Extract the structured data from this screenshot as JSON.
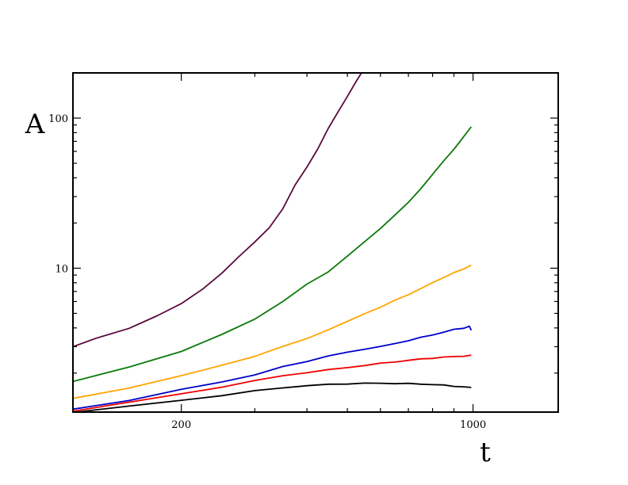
{
  "chart_data": {
    "type": "line",
    "title": "",
    "xlabel": "t",
    "ylabel": "A",
    "xscale": "log",
    "yscale": "log",
    "xlim": [
      110,
      1600
    ],
    "ylim": [
      1.1,
      200
    ],
    "xticks": [
      200,
      1000
    ],
    "xtick_labels": [
      "200",
      "1000"
    ],
    "yticks": [
      10,
      100
    ],
    "ytick_labels": [
      "10",
      "100"
    ],
    "grid": false,
    "legend": "none",
    "series": [
      {
        "color": "#5a0a3c",
        "x": [
          110,
          125,
          150,
          175,
          200,
          225,
          250,
          275,
          300,
          325,
          350,
          375,
          400,
          425,
          450,
          475,
          500,
          525,
          540
        ],
        "y": [
          3.0,
          3.4,
          4.0,
          4.8,
          5.8,
          7.3,
          9.2,
          12.0,
          15.0,
          18.5,
          25,
          36,
          47,
          63,
          85,
          110,
          140,
          175,
          200
        ]
      },
      {
        "color": "#0a7a0a",
        "x": [
          110,
          150,
          200,
          250,
          300,
          350,
          400,
          450,
          500,
          550,
          600,
          650,
          700,
          750,
          800,
          850,
          900,
          950,
          990
        ],
        "y": [
          1.75,
          2.2,
          2.8,
          3.6,
          4.6,
          6.0,
          7.8,
          9.5,
          12.0,
          15.0,
          18.5,
          22.5,
          27.5,
          34,
          42,
          52,
          62,
          75,
          88
        ]
      },
      {
        "color": "#ffa500",
        "x": [
          110,
          150,
          200,
          250,
          300,
          350,
          400,
          450,
          500,
          550,
          600,
          650,
          700,
          750,
          800,
          850,
          900,
          950,
          990
        ],
        "y": [
          1.35,
          1.6,
          1.92,
          2.25,
          2.6,
          3.0,
          3.4,
          3.9,
          4.4,
          5.0,
          5.5,
          6.1,
          6.7,
          7.3,
          8.0,
          8.7,
          9.3,
          9.9,
          10.5
        ]
      },
      {
        "color": "#0000cc",
        "x": [
          110,
          150,
          200,
          250,
          300,
          350,
          400,
          450,
          500,
          550,
          600,
          650,
          700,
          750,
          800,
          850,
          900,
          950,
          980,
          990
        ],
        "y": [
          1.15,
          1.32,
          1.55,
          1.75,
          1.95,
          2.2,
          2.4,
          2.6,
          2.75,
          2.9,
          3.0,
          3.15,
          3.3,
          3.45,
          3.6,
          3.75,
          3.9,
          4.0,
          4.1,
          3.85
        ]
      },
      {
        "color": "#ee0000",
        "x": [
          110,
          150,
          200,
          250,
          300,
          350,
          400,
          450,
          500,
          550,
          600,
          650,
          700,
          750,
          800,
          850,
          900,
          950,
          990
        ],
        "y": [
          1.12,
          1.28,
          1.45,
          1.62,
          1.78,
          1.92,
          2.02,
          2.1,
          2.18,
          2.25,
          2.32,
          2.38,
          2.43,
          2.48,
          2.52,
          2.55,
          2.58,
          2.6,
          2.62
        ]
      },
      {
        "color": "#000000",
        "x": [
          110,
          150,
          200,
          250,
          300,
          350,
          400,
          450,
          500,
          550,
          600,
          650,
          700,
          750,
          800,
          850,
          900,
          950,
          990
        ],
        "y": [
          1.1,
          1.2,
          1.32,
          1.42,
          1.52,
          1.6,
          1.65,
          1.68,
          1.7,
          1.71,
          1.71,
          1.71,
          1.7,
          1.69,
          1.68,
          1.66,
          1.64,
          1.62,
          1.6
        ]
      }
    ]
  }
}
